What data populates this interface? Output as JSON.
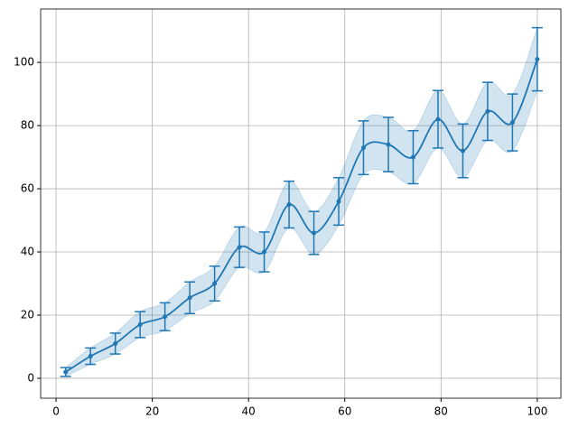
{
  "chart_data": {
    "type": "errorband",
    "series": [
      {
        "color": "#1f77b4",
        "x": [
          2,
          7.16,
          12.32,
          17.47,
          22.63,
          27.79,
          32.95,
          38.11,
          43.26,
          48.42,
          53.58,
          58.74,
          63.89,
          69.05,
          74.21,
          79.37,
          84.53,
          89.68,
          94.84,
          100
        ],
        "values": [
          2,
          7,
          11,
          17,
          19.5,
          25.5,
          30,
          41.5,
          40,
          55,
          46,
          56,
          73,
          74,
          70,
          82,
          72,
          84.5,
          81,
          101
        ],
        "errors": [
          1.4,
          2.6,
          3.3,
          4.1,
          4.4,
          5,
          5.5,
          6.4,
          6.3,
          7.4,
          6.8,
          7.5,
          8.5,
          8.6,
          8.4,
          9.1,
          8.5,
          9.2,
          9,
          10
        ]
      }
    ],
    "xlim": [
      -3.2,
      104.9
    ],
    "ylim": [
      -6.3,
      116.9
    ],
    "xticks": [
      0,
      20,
      40,
      60,
      80,
      100
    ],
    "yticks": [
      0,
      20,
      40,
      60,
      80,
      100
    ],
    "grid": true
  }
}
